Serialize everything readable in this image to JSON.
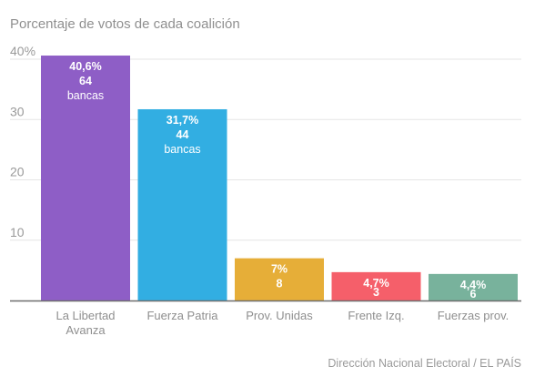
{
  "chart_data": {
    "type": "bar",
    "title": "Porcentaje de votos de cada coalición",
    "source": "Dirección Nacional Electoral / EL PAÍS",
    "xlabel": "",
    "ylabel": "",
    "ylim": [
      0,
      40
    ],
    "yticks": [
      {
        "value": 10,
        "label": "10"
      },
      {
        "value": 20,
        "label": "20"
      },
      {
        "value": 30,
        "label": "30"
      },
      {
        "value": 40,
        "label": "40%"
      }
    ],
    "grid": true,
    "categories": [
      "La Libertad Avanza",
      "Fuerza Patria",
      "Prov. Unidas",
      "Frente Izq.",
      "Fuerzas prov."
    ],
    "category_lines": [
      [
        "La Libertad",
        "Avanza"
      ],
      [
        "Fuerza Patria"
      ],
      [
        "Prov. Unidas"
      ],
      [
        "Frente Izq."
      ],
      [
        "Fuerzas prov."
      ]
    ],
    "values": [
      40.6,
      31.7,
      7,
      4.7,
      4.4
    ],
    "value_labels": [
      "40,6%",
      "31,7%",
      "7%",
      "4,7%",
      "4,4%"
    ],
    "seats": [
      64,
      44,
      8,
      3,
      6
    ],
    "seats_suffix": [
      "bancas",
      "bancas",
      "",
      "",
      ""
    ],
    "colors": [
      "#8e5ec6",
      "#32aee2",
      "#e6ae38",
      "#f55f6a",
      "#78b29c"
    ]
  }
}
